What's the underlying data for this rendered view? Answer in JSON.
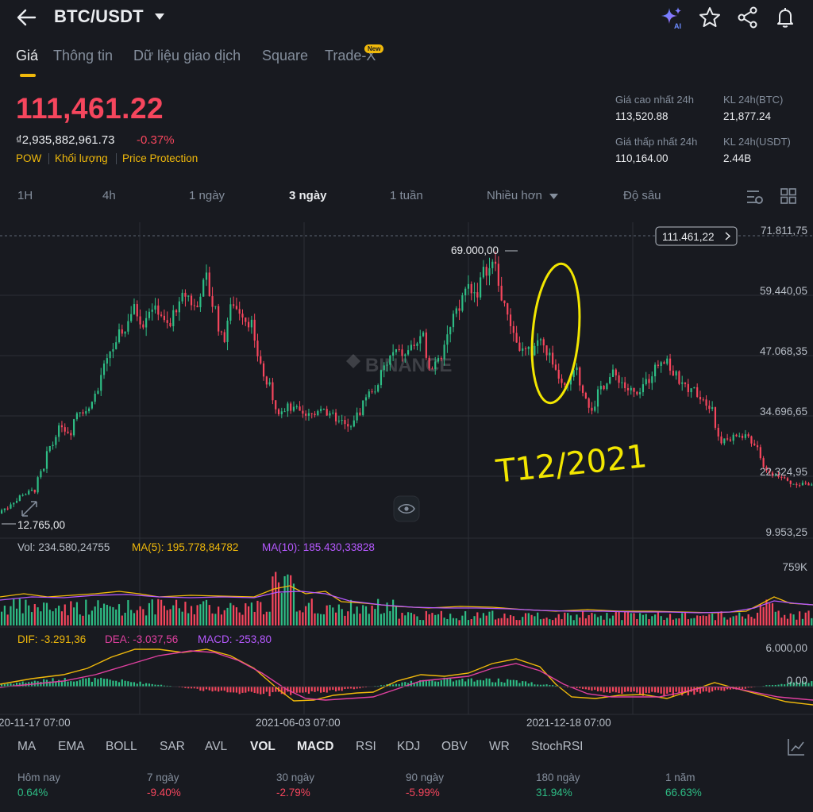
{
  "header": {
    "pair": "BTC/USDT",
    "icons": [
      "back-arrow-icon",
      "ai-sparkle-icon",
      "star-icon",
      "share-icon",
      "bell-icon"
    ]
  },
  "tabs": [
    {
      "label": "Giá",
      "active": true
    },
    {
      "label": "Thông tin"
    },
    {
      "label": "Dữ liệu giao dịch"
    },
    {
      "label": "Square"
    },
    {
      "label": "Trade-X"
    }
  ],
  "new_badge": "New",
  "price": {
    "last": "111,461.22",
    "vnd": "₫2,935,882,961.73",
    "change": "-0.37%",
    "tags": [
      "POW",
      "Khối lượng",
      "Price Protection"
    ]
  },
  "stats": {
    "high_label": "Giá cao nhất 24h",
    "high_value": "113,520.88",
    "low_label": "Giá thấp nhất 24h",
    "low_value": "110,164.00",
    "vol_btc_label": "KL 24h(BTC)",
    "vol_btc_value": "21,877.24",
    "vol_usdt_label": "KL 24h(USDT)",
    "vol_usdt_value": "2.44B"
  },
  "intervals": [
    {
      "label": "1H"
    },
    {
      "label": "4h"
    },
    {
      "label": "1 ngày"
    },
    {
      "label": "3 ngày",
      "active": true
    },
    {
      "label": "1 tuần"
    },
    {
      "label": "Nhiều hơn"
    },
    {
      "label": "Độ sâu"
    }
  ],
  "chart": {
    "current_price_label": "111.461,22",
    "price_axis": [
      "71.811,75",
      "59.440,05",
      "47.068,35",
      "34.696,65",
      "22.324,95",
      "9.953,25"
    ],
    "high_marker": "69.000,00",
    "low_marker": "12.765,00",
    "watermark": "BINANCE",
    "annotation": "T12/2021",
    "volume_legend": {
      "vol": "Vol: 234.580,24755",
      "ma5": "MA(5): 195.778,84782",
      "ma10": "MA(10): 185.430,33828"
    },
    "volume_axis": "759K",
    "macd_legend": {
      "dif": "DIF: -3.291,36",
      "dea": "DEA: -3.037,56",
      "macd": "MACD: -253,80"
    },
    "macd_axis": [
      "6.000,00",
      "0,00"
    ],
    "time_axis": [
      "20-11-17 07:00",
      "2021-06-03 07:00",
      "2021-12-18 07:00"
    ],
    "colors": {
      "up": "#2ebd85",
      "down": "#f6465d",
      "ma5": "#f0b90b",
      "ma10": "#b659ff",
      "dea": "#e040a0"
    }
  },
  "chart_data": {
    "type": "candlestick",
    "series_close_approx": [
      15800,
      17500,
      18800,
      19100,
      23500,
      29000,
      33000,
      31500,
      36500,
      36000,
      40000,
      45500,
      49000,
      52000,
      57000,
      54000,
      58000,
      55500,
      52000,
      57500,
      59000,
      56500,
      63000,
      56000,
      49500,
      58000,
      56000,
      54000,
      44500,
      40000,
      35500,
      36800,
      35500,
      33500,
      34500,
      37000,
      34000,
      33000,
      31500,
      35500,
      39500,
      40500,
      45000,
      47500,
      46500,
      49000,
      50000,
      44000,
      48000,
      53000,
      55500,
      61500,
      60000,
      64500,
      65500,
      57000,
      51500,
      47500,
      47000,
      50500,
      46500,
      41500,
      39500,
      43500,
      38500,
      36000,
      41000,
      43500,
      41500,
      39500,
      38000,
      42000,
      45500,
      47000,
      42500,
      40000,
      39500,
      38500,
      37000,
      29000,
      29500,
      30500,
      30000,
      28000,
      23000,
      22500,
      21500,
      20500,
      21000,
      20000
    ]
  },
  "indicators": [
    {
      "label": "MA"
    },
    {
      "label": "EMA"
    },
    {
      "label": "BOLL"
    },
    {
      "label": "SAR"
    },
    {
      "label": "AVL"
    },
    {
      "label": "VOL",
      "active": true
    },
    {
      "label": "MACD",
      "active": true
    },
    {
      "label": "RSI"
    },
    {
      "label": "KDJ"
    },
    {
      "label": "OBV"
    },
    {
      "label": "WR"
    },
    {
      "label": "StochRSI"
    }
  ],
  "performance": [
    {
      "label": "Hôm nay",
      "value": "0.64%",
      "trend": "up"
    },
    {
      "label": "7 ngày",
      "value": "-9.40%",
      "trend": "down"
    },
    {
      "label": "30 ngày",
      "value": "-2.79%",
      "trend": "down"
    },
    {
      "label": "90 ngày",
      "value": "-5.99%",
      "trend": "down"
    },
    {
      "label": "180 ngày",
      "value": "31.94%",
      "trend": "up"
    },
    {
      "label": "1 năm",
      "value": "66.63%",
      "trend": "up"
    }
  ]
}
